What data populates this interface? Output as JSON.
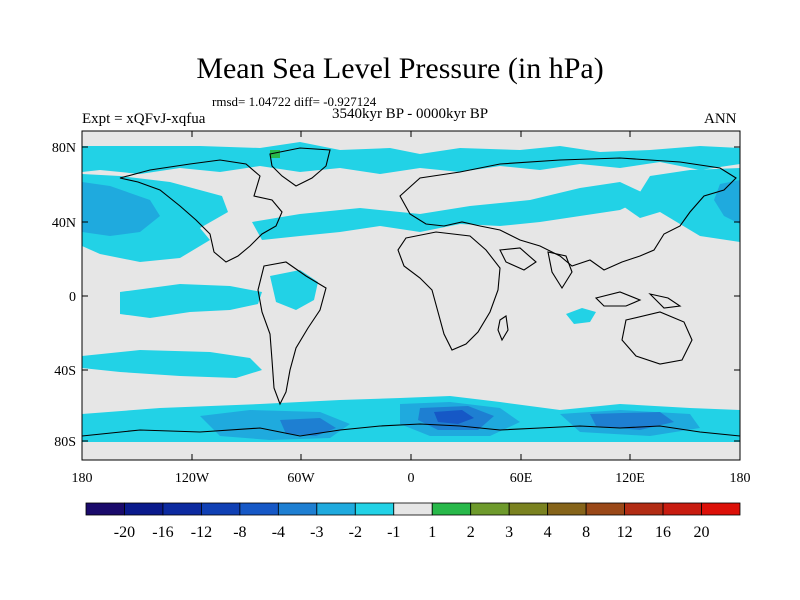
{
  "title": "Mean Sea Level Pressure (in hPa)",
  "stats": "rmsd= 1.04722 diff= -0.927124",
  "period": "3540kyr BP - 0000kyr BP",
  "expt": "Expt = xQFvJ-xqfua",
  "season": "ANN",
  "lat_labels": [
    "80N",
    "40N",
    "0",
    "40S",
    "80S"
  ],
  "lon_labels": [
    "180",
    "120W",
    "60W",
    "0",
    "60E",
    "120E",
    "180"
  ],
  "colorbar": {
    "colors": [
      "#1a0a6b",
      "#0a1a8c",
      "#0c2aa0",
      "#1040b4",
      "#1658c6",
      "#1e7fd2",
      "#1faade",
      "#22d2e6",
      "#e6e6e6",
      "#28b84a",
      "#6e9a2c",
      "#7a8220",
      "#86641a",
      "#9a4818",
      "#b22c14",
      "#c81c10",
      "#dc1008"
    ],
    "labels": [
      "-20",
      "-16",
      "-12",
      "-8",
      "-4",
      "-3",
      "-2",
      "-1",
      "1",
      "2",
      "3",
      "4",
      "8",
      "12",
      "16",
      "20"
    ]
  },
  "map_colors": {
    "background": "#e6e6e6",
    "light_negative": "#22d2e6",
    "mid_negative": "#1faade",
    "strong_negative": "#1e7fd2",
    "deep_negative": "#1658c6",
    "positive": "#28b84a",
    "coast": "#000000"
  }
}
